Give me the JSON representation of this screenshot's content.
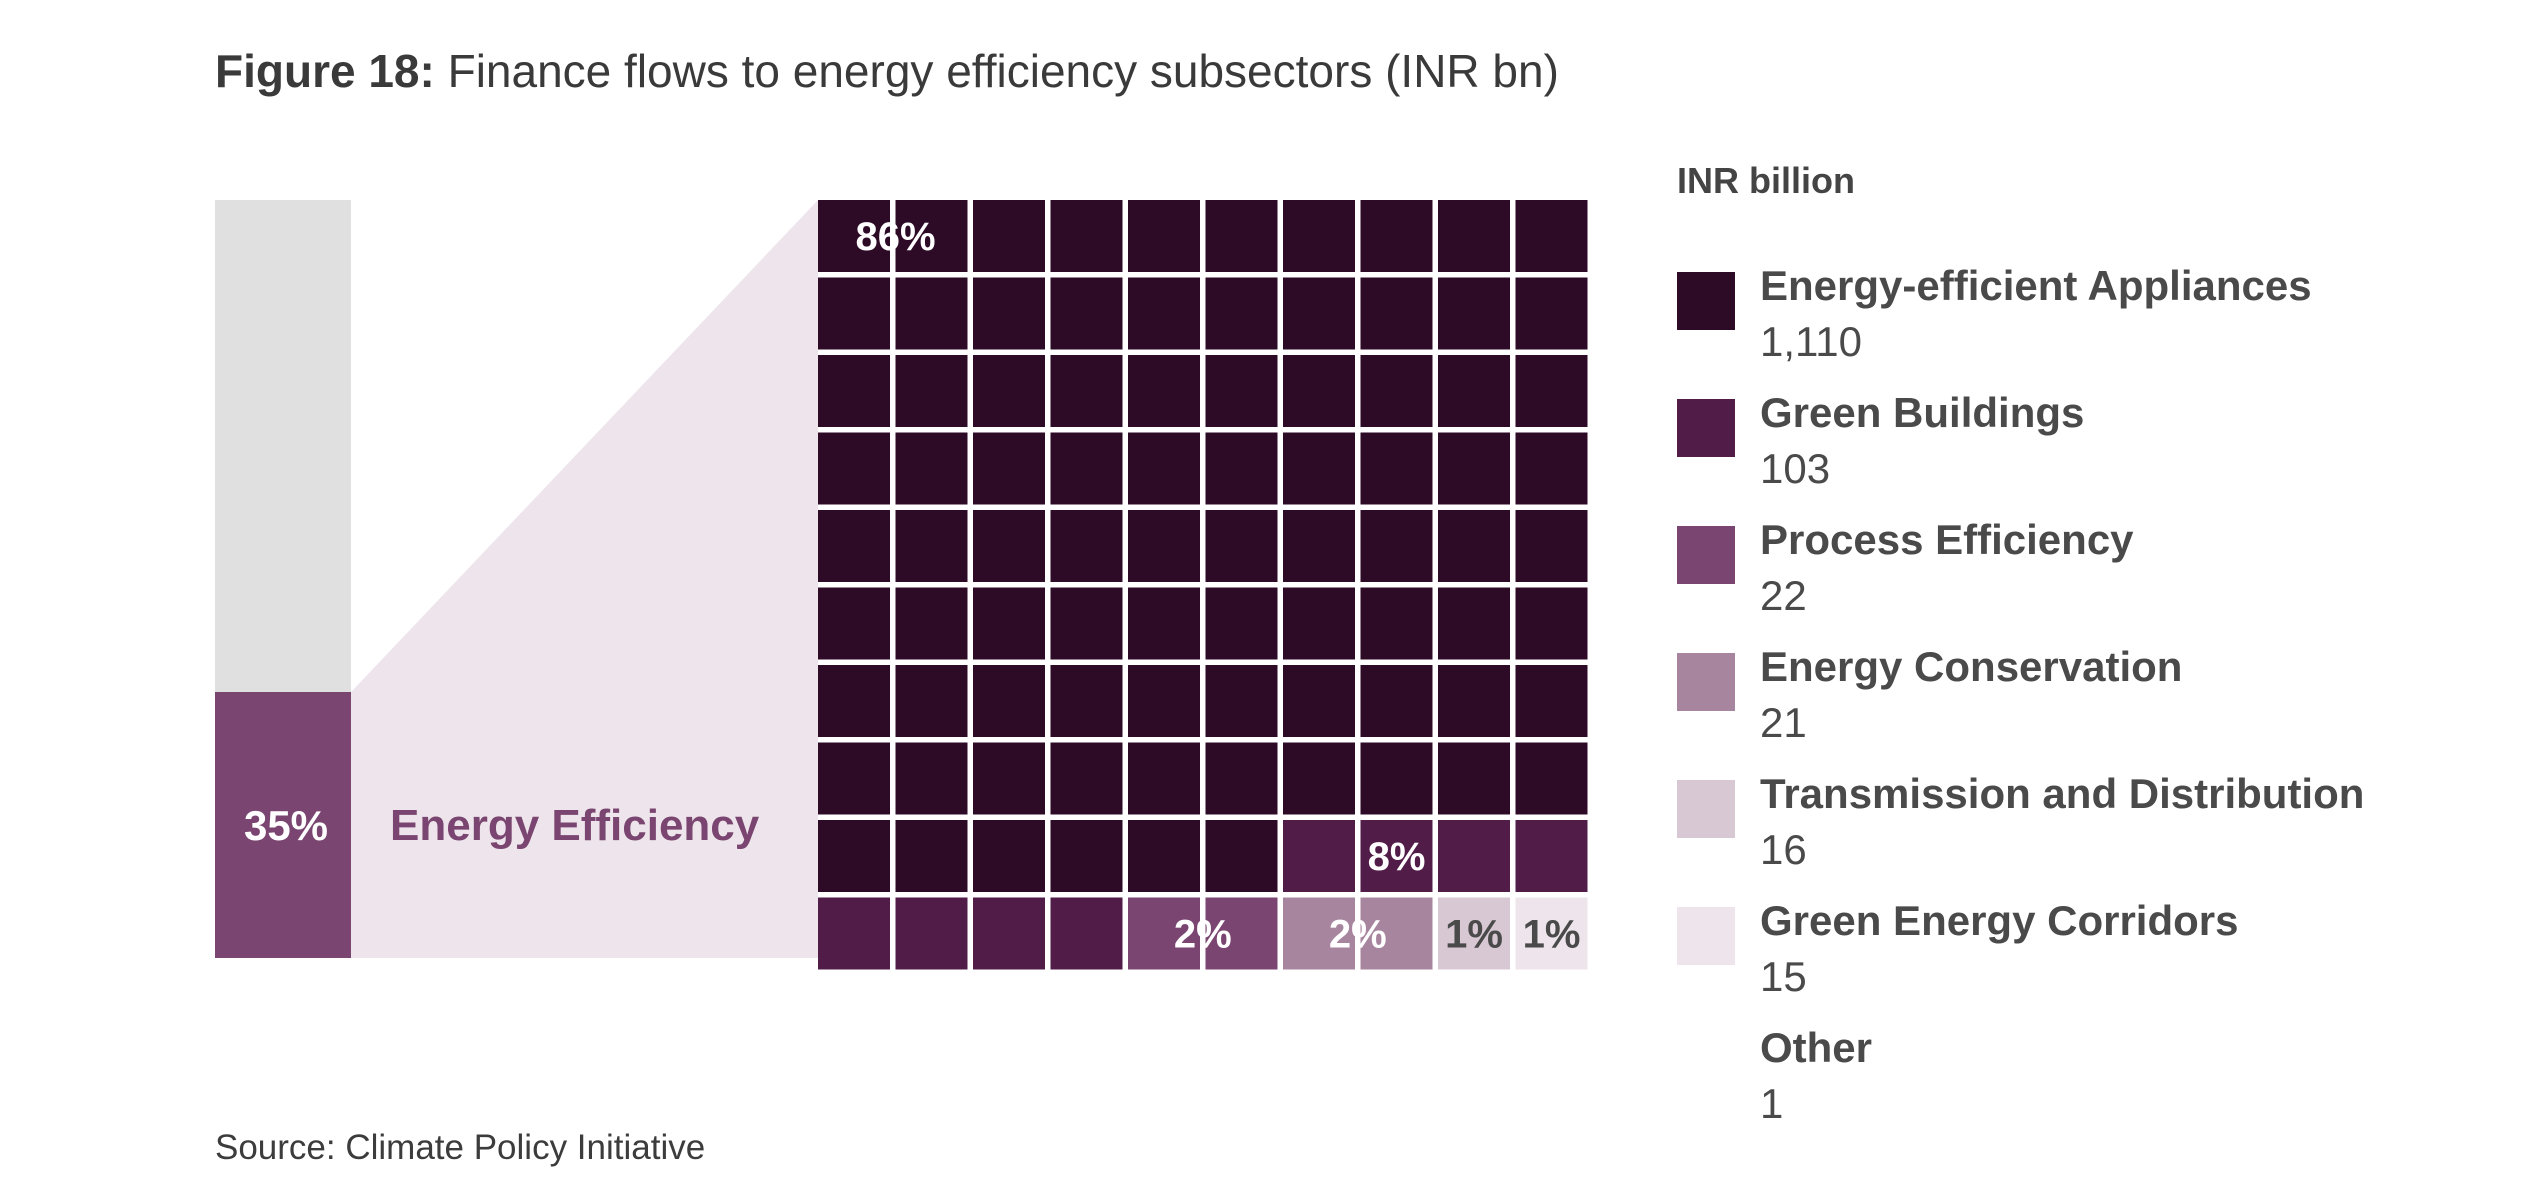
{
  "figure": {
    "label": "Figure 18:",
    "title": "Finance flows to energy efficiency subsectors (INR bn)",
    "source": "Source: Climate Policy Initiative"
  },
  "chart_data": {
    "type": "waffle",
    "context_bar": {
      "share_label": "35%",
      "share": 0.35,
      "category": "Energy Efficiency",
      "color": "#7a4570",
      "rest_color": "#e0e0e0"
    },
    "connector_color": "#ede5eb",
    "legend_title": "INR billion",
    "unit": "INR billion",
    "grid": {
      "rows": 10,
      "cols": 10
    },
    "series": [
      {
        "name": "Energy-efficient Appliances",
        "value": "1,110",
        "squares": 86,
        "label": "86%",
        "color": "#2d0a26"
      },
      {
        "name": "Green Buildings",
        "value": "103",
        "squares": 8,
        "label": "8%",
        "color": "#511c48"
      },
      {
        "name": "Process Efficiency",
        "value": "22",
        "squares": 2,
        "label": "2%",
        "color": "#7a4570"
      },
      {
        "name": "Energy Conservation",
        "value": "21",
        "squares": 2,
        "label": "2%",
        "color": "#a8859e"
      },
      {
        "name": "Transmission and Distribution",
        "value": "16",
        "squares": 1,
        "label": "1%",
        "color": "#d8c8d3"
      },
      {
        "name": "Green Energy Corridors",
        "value": "15",
        "squares": 1,
        "label": "1%",
        "color": "#ede5eb"
      },
      {
        "name": "Other",
        "value": "1",
        "squares": 0,
        "label": "",
        "color": "#ffffff"
      }
    ]
  }
}
